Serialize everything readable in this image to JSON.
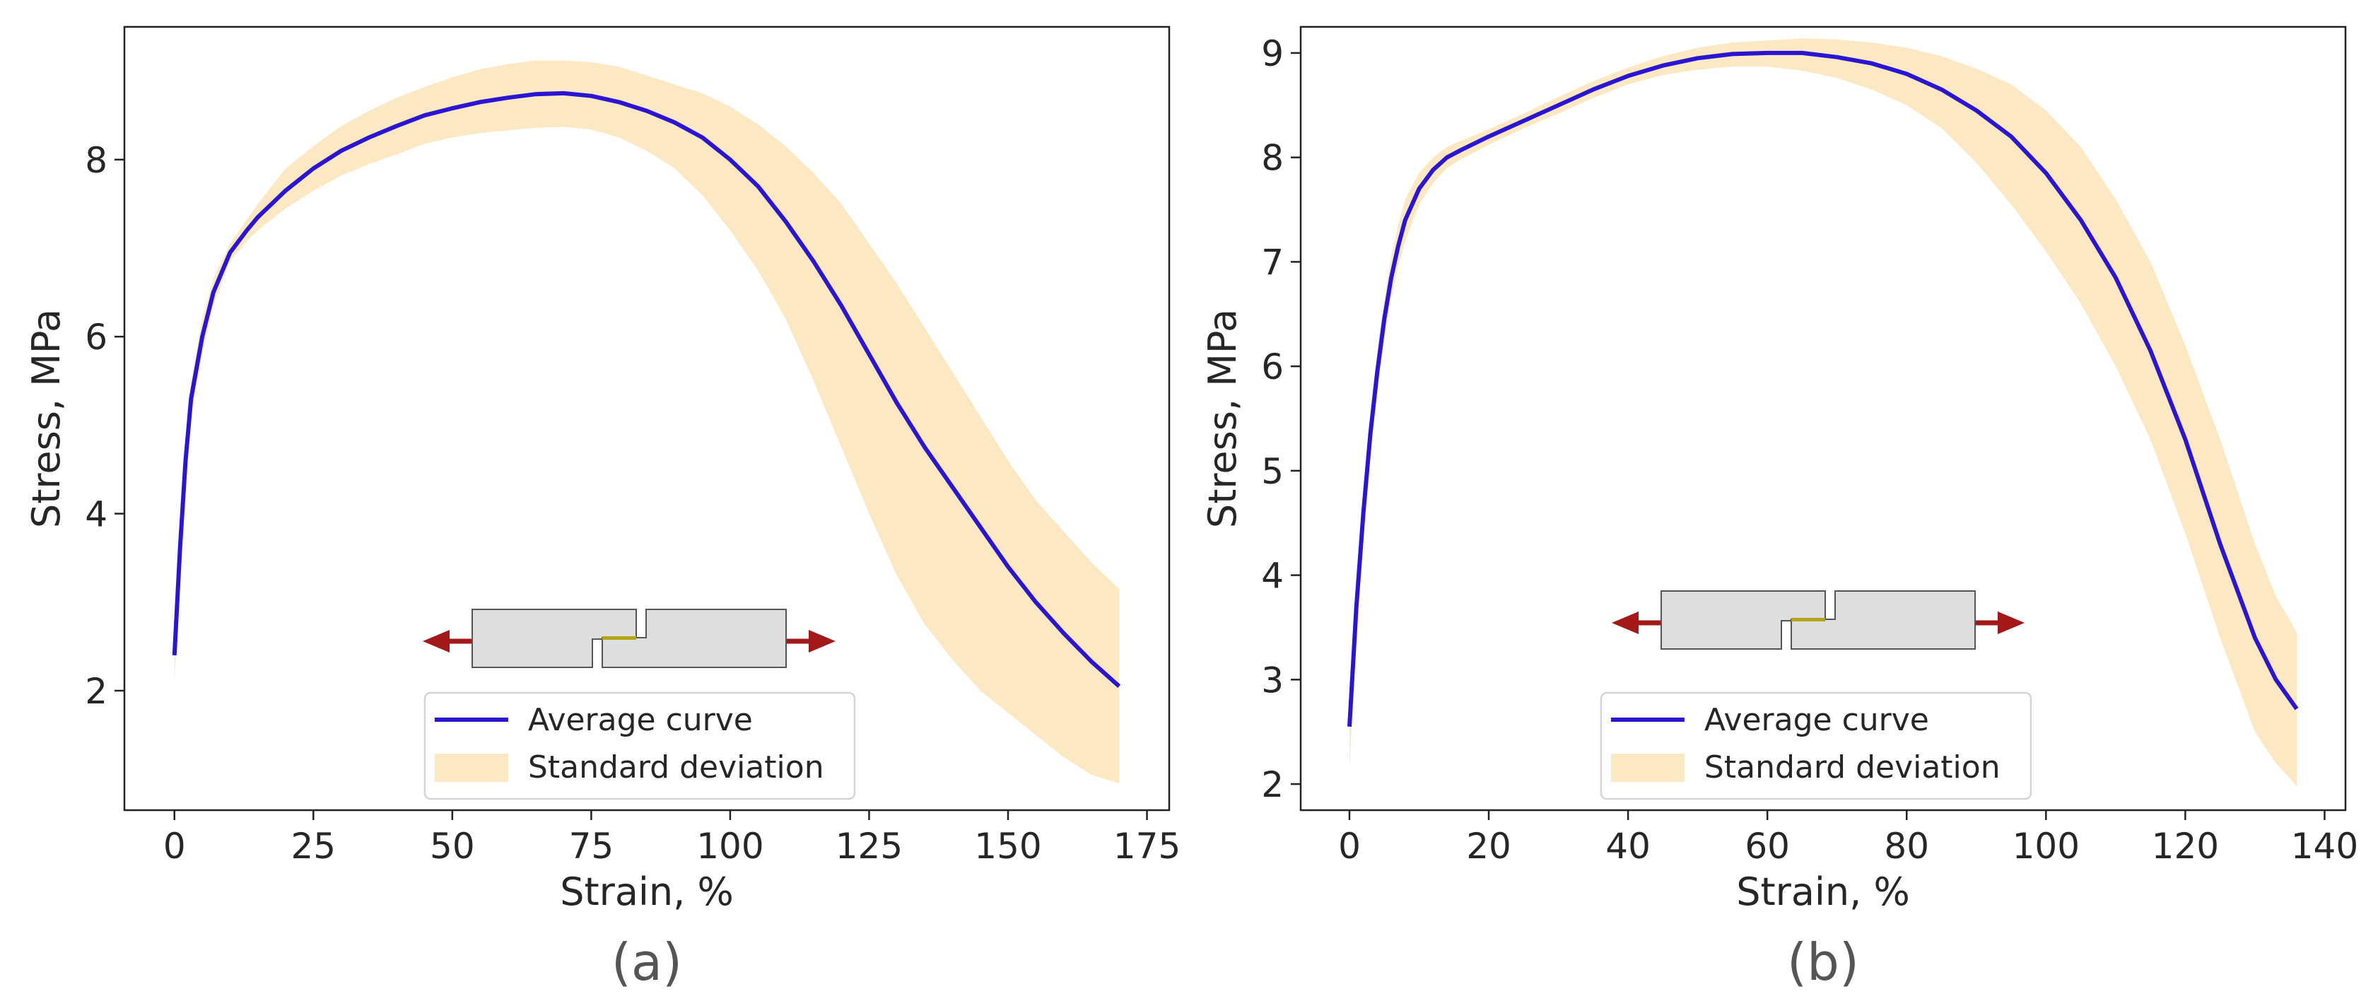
{
  "chart_data": [
    {
      "type": "line",
      "panel_label": "(a)",
      "xlabel": "Strain, %",
      "ylabel": "Stress, MPa",
      "xlim": [
        -9,
        179
      ],
      "ylim": [
        0.65,
        9.5
      ],
      "xticks": [
        0,
        25,
        50,
        75,
        100,
        125,
        150,
        175
      ],
      "yticks": [
        2,
        4,
        6,
        8
      ],
      "legend": {
        "location": "bottom-center",
        "entries": [
          "Average curve",
          "Standard deviation"
        ]
      },
      "series": [
        {
          "name": "Average curve",
          "x": [
            0,
            1,
            2,
            3,
            5,
            7,
            10,
            13,
            15,
            20,
            25,
            30,
            35,
            40,
            45,
            50,
            55,
            60,
            65,
            70,
            75,
            80,
            85,
            90,
            95,
            100,
            105,
            110,
            115,
            120,
            125,
            130,
            135,
            140,
            145,
            150,
            155,
            160,
            165,
            170
          ],
          "y": [
            2.4,
            3.6,
            4.6,
            5.3,
            6.0,
            6.5,
            6.95,
            7.2,
            7.35,
            7.65,
            7.9,
            8.1,
            8.25,
            8.38,
            8.5,
            8.58,
            8.65,
            8.7,
            8.74,
            8.75,
            8.72,
            8.65,
            8.55,
            8.42,
            8.25,
            8.0,
            7.7,
            7.3,
            6.85,
            6.35,
            5.8,
            5.25,
            4.75,
            4.3,
            3.85,
            3.4,
            3.0,
            2.65,
            2.33,
            2.05
          ]
        },
        {
          "name": "Standard deviation",
          "x": [
            0,
            1,
            2,
            3,
            5,
            7,
            10,
            13,
            15,
            20,
            25,
            30,
            35,
            40,
            45,
            50,
            55,
            60,
            65,
            70,
            75,
            80,
            85,
            90,
            95,
            100,
            105,
            110,
            115,
            120,
            125,
            130,
            135,
            140,
            145,
            150,
            155,
            160,
            165,
            170
          ],
          "upper": [
            2.7,
            3.8,
            4.8,
            5.5,
            6.2,
            6.65,
            7.05,
            7.32,
            7.5,
            7.9,
            8.15,
            8.38,
            8.55,
            8.7,
            8.82,
            8.93,
            9.02,
            9.08,
            9.12,
            9.12,
            9.1,
            9.05,
            8.95,
            8.85,
            8.75,
            8.6,
            8.4,
            8.15,
            7.85,
            7.5,
            7.05,
            6.6,
            6.1,
            5.6,
            5.1,
            4.6,
            4.15,
            3.8,
            3.45,
            3.15
          ],
          "lower": [
            2.1,
            3.4,
            4.4,
            5.1,
            5.8,
            6.35,
            6.85,
            7.08,
            7.2,
            7.45,
            7.65,
            7.82,
            7.95,
            8.06,
            8.18,
            8.25,
            8.3,
            8.33,
            8.36,
            8.37,
            8.34,
            8.25,
            8.1,
            7.9,
            7.6,
            7.2,
            6.75,
            6.2,
            5.5,
            4.75,
            4.0,
            3.3,
            2.75,
            2.35,
            2.0,
            1.75,
            1.5,
            1.25,
            1.05,
            0.95
          ]
        }
      ]
    },
    {
      "type": "line",
      "panel_label": "(b)",
      "xlabel": "Strain, %",
      "ylabel": "Stress, MPa",
      "xlim": [
        -7,
        143
      ],
      "ylim": [
        1.75,
        9.25
      ],
      "xticks": [
        0,
        20,
        40,
        60,
        80,
        100,
        120,
        140
      ],
      "yticks": [
        2,
        3,
        4,
        5,
        6,
        7,
        8,
        9
      ],
      "legend": {
        "location": "bottom-center",
        "entries": [
          "Average curve",
          "Standard deviation"
        ]
      },
      "series": [
        {
          "name": "Average curve",
          "x": [
            0,
            1,
            2,
            3,
            4,
            5,
            6,
            7,
            8,
            10,
            12,
            14,
            16,
            20,
            25,
            30,
            35,
            40,
            45,
            50,
            55,
            60,
            65,
            70,
            75,
            80,
            85,
            90,
            95,
            100,
            105,
            110,
            115,
            120,
            125,
            130,
            133,
            136
          ],
          "y": [
            2.55,
            3.7,
            4.6,
            5.35,
            5.95,
            6.45,
            6.85,
            7.15,
            7.4,
            7.7,
            7.88,
            8.0,
            8.07,
            8.2,
            8.35,
            8.5,
            8.65,
            8.78,
            8.88,
            8.95,
            8.99,
            9.0,
            9.0,
            8.96,
            8.9,
            8.8,
            8.65,
            8.45,
            8.2,
            7.85,
            7.4,
            6.85,
            6.15,
            5.3,
            4.3,
            3.4,
            3.0,
            2.72
          ]
        },
        {
          "name": "Standard deviation",
          "x": [
            0,
            1,
            2,
            3,
            4,
            5,
            6,
            7,
            8,
            10,
            12,
            14,
            16,
            20,
            25,
            30,
            35,
            40,
            45,
            50,
            55,
            60,
            65,
            70,
            75,
            80,
            85,
            90,
            95,
            100,
            105,
            110,
            115,
            120,
            125,
            130,
            133,
            136
          ],
          "upper": [
            2.95,
            3.9,
            4.8,
            5.55,
            6.15,
            6.65,
            7.05,
            7.35,
            7.6,
            7.85,
            8.0,
            8.1,
            8.16,
            8.27,
            8.42,
            8.58,
            8.73,
            8.86,
            8.97,
            9.05,
            9.1,
            9.12,
            9.14,
            9.13,
            9.1,
            9.05,
            8.97,
            8.85,
            8.7,
            8.45,
            8.1,
            7.6,
            7.0,
            6.2,
            5.3,
            4.3,
            3.8,
            3.45
          ],
          "lower": [
            2.15,
            3.5,
            4.4,
            5.15,
            5.75,
            6.25,
            6.65,
            6.95,
            7.2,
            7.55,
            7.75,
            7.9,
            7.98,
            8.12,
            8.28,
            8.42,
            8.57,
            8.7,
            8.79,
            8.84,
            8.87,
            8.87,
            8.83,
            8.76,
            8.65,
            8.5,
            8.28,
            7.95,
            7.55,
            7.1,
            6.6,
            6.0,
            5.3,
            4.4,
            3.4,
            2.5,
            2.2,
            1.98
          ]
        }
      ]
    }
  ],
  "colors": {
    "average_line": "#2a16d2",
    "std_fill": "#fde8c4",
    "specimen_fill": "#dedede",
    "specimen_stroke": "#555555",
    "arrow": "#a31818",
    "adhesive": "#b5a41a"
  }
}
